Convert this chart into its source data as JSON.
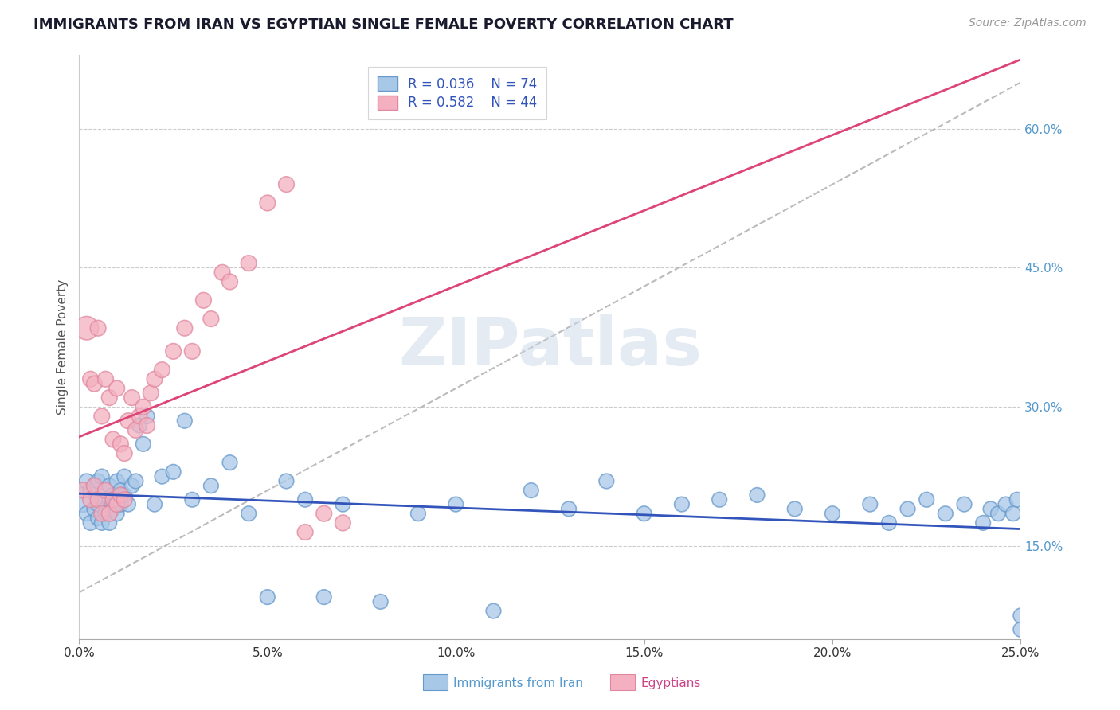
{
  "title": "IMMIGRANTS FROM IRAN VS EGYPTIAN SINGLE FEMALE POVERTY CORRELATION CHART",
  "source": "Source: ZipAtlas.com",
  "ylabel": "Single Female Poverty",
  "xlim": [
    0.0,
    0.25
  ],
  "ylim": [
    0.05,
    0.68
  ],
  "xticks": [
    0.0,
    0.05,
    0.1,
    0.15,
    0.2,
    0.25
  ],
  "yticks": [
    0.15,
    0.3,
    0.45,
    0.6
  ],
  "xtick_labels": [
    "0.0%",
    "5.0%",
    "10.0%",
    "15.0%",
    "20.0%",
    "25.0%"
  ],
  "ytick_labels": [
    "15.0%",
    "30.0%",
    "45.0%",
    "60.0%"
  ],
  "legend_labels": [
    "Immigrants from Iran",
    "Egyptians"
  ],
  "R_iran": 0.036,
  "N_iran": 74,
  "R_egypt": 0.582,
  "N_egypt": 44,
  "color_iran": "#a8c8e8",
  "color_egypt": "#f4b0c0",
  "color_iran_edge": "#6699cc",
  "color_egypt_edge": "#e088a0",
  "color_iran_line": "#3355bb",
  "color_egypt_line": "#dd4477",
  "color_ref_line": "#bbbbbb",
  "iran_x": [
    0.001,
    0.002,
    0.002,
    0.003,
    0.003,
    0.004,
    0.004,
    0.005,
    0.005,
    0.005,
    0.006,
    0.006,
    0.006,
    0.007,
    0.007,
    0.007,
    0.008,
    0.008,
    0.008,
    0.009,
    0.009,
    0.01,
    0.01,
    0.01,
    0.011,
    0.011,
    0.012,
    0.012,
    0.013,
    0.014,
    0.015,
    0.016,
    0.017,
    0.018,
    0.02,
    0.022,
    0.025,
    0.028,
    0.03,
    0.035,
    0.04,
    0.045,
    0.05,
    0.055,
    0.06,
    0.065,
    0.07,
    0.08,
    0.09,
    0.1,
    0.11,
    0.12,
    0.13,
    0.14,
    0.15,
    0.16,
    0.17,
    0.18,
    0.19,
    0.2,
    0.21,
    0.215,
    0.22,
    0.225,
    0.23,
    0.235,
    0.24,
    0.242,
    0.244,
    0.246,
    0.248,
    0.249,
    0.25,
    0.25
  ],
  "iran_y": [
    0.2,
    0.185,
    0.22,
    0.175,
    0.21,
    0.19,
    0.215,
    0.18,
    0.195,
    0.22,
    0.175,
    0.2,
    0.225,
    0.19,
    0.21,
    0.185,
    0.175,
    0.2,
    0.215,
    0.19,
    0.205,
    0.185,
    0.2,
    0.22,
    0.21,
    0.195,
    0.205,
    0.225,
    0.195,
    0.215,
    0.22,
    0.28,
    0.26,
    0.29,
    0.195,
    0.225,
    0.23,
    0.285,
    0.2,
    0.215,
    0.24,
    0.185,
    0.095,
    0.22,
    0.2,
    0.095,
    0.195,
    0.09,
    0.185,
    0.195,
    0.08,
    0.21,
    0.19,
    0.22,
    0.185,
    0.195,
    0.2,
    0.205,
    0.19,
    0.185,
    0.195,
    0.175,
    0.19,
    0.2,
    0.185,
    0.195,
    0.175,
    0.19,
    0.185,
    0.195,
    0.185,
    0.2,
    0.075,
    0.06
  ],
  "iran_size_base": 180,
  "egypt_x": [
    0.001,
    0.002,
    0.003,
    0.003,
    0.004,
    0.004,
    0.005,
    0.005,
    0.006,
    0.006,
    0.007,
    0.007,
    0.008,
    0.008,
    0.009,
    0.009,
    0.01,
    0.01,
    0.011,
    0.011,
    0.012,
    0.012,
    0.013,
    0.014,
    0.015,
    0.016,
    0.017,
    0.018,
    0.019,
    0.02,
    0.022,
    0.025,
    0.028,
    0.03,
    0.033,
    0.035,
    0.038,
    0.04,
    0.045,
    0.05,
    0.055,
    0.06,
    0.065,
    0.07
  ],
  "egypt_y": [
    0.21,
    0.385,
    0.2,
    0.33,
    0.215,
    0.325,
    0.2,
    0.385,
    0.185,
    0.29,
    0.21,
    0.33,
    0.185,
    0.31,
    0.2,
    0.265,
    0.195,
    0.32,
    0.205,
    0.26,
    0.2,
    0.25,
    0.285,
    0.31,
    0.275,
    0.29,
    0.3,
    0.28,
    0.315,
    0.33,
    0.34,
    0.36,
    0.385,
    0.36,
    0.415,
    0.395,
    0.445,
    0.435,
    0.455,
    0.52,
    0.54,
    0.165,
    0.185,
    0.175
  ],
  "egypt_size_base": 200,
  "egypt_large_idx": 1,
  "egypt_large_size": 450,
  "iran_large_idx": 0,
  "iran_large_size": 500,
  "watermark_text": "ZIPatlas",
  "title_color": "#1a1a2e",
  "axis_label_color": "#555555",
  "tick_color_right": "#5599cc",
  "legend_text_color": "#3355bb",
  "bottom_label_color_iran": "#5599cc",
  "bottom_label_color_egypt": "#cc4488"
}
